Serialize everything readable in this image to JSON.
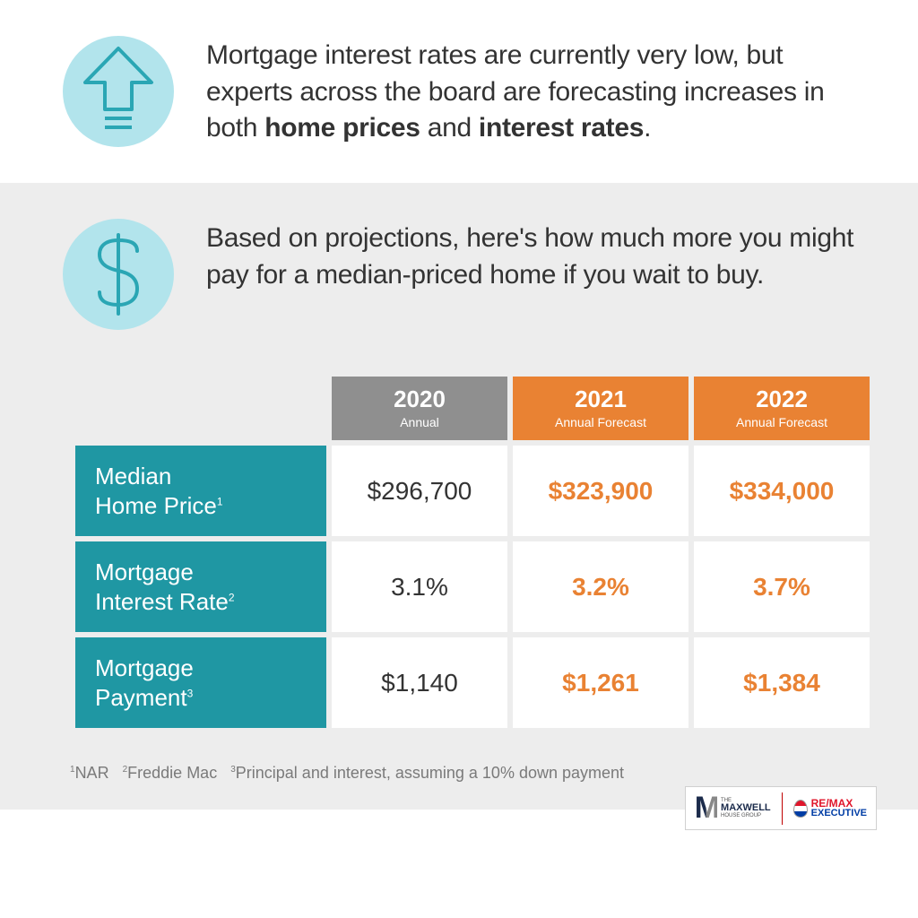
{
  "colors": {
    "bg_top": "#ffffff",
    "bg_bottom": "#ededed",
    "text_body": "#333333",
    "icon_fill": "#b2e4ec",
    "icon_stroke": "#2aa6b4",
    "header_2020_bg": "#8f8f8f",
    "header_fore_bg": "#e98233",
    "row_label_bg": "#1f97a3",
    "forecast_text": "#e98233",
    "footnote_text": "#7a7a7a"
  },
  "section1": {
    "text_pre": "Mortgage interest rates are currently very low, but experts across the board are forecasting increases in both ",
    "bold1": "home prices",
    "mid": " and ",
    "bold2": "interest rates",
    "post": "."
  },
  "section2": {
    "text": "Based on projections, here's how much more you might pay for a median-priced home if you wait to buy."
  },
  "table": {
    "type": "table",
    "columns": [
      {
        "year": "2020",
        "sub": "Annual",
        "is_forecast": false
      },
      {
        "year": "2021",
        "sub": "Annual Forecast",
        "is_forecast": true
      },
      {
        "year": "2022",
        "sub": "Annual Forecast",
        "is_forecast": true
      }
    ],
    "rows": [
      {
        "label": "Median Home Price",
        "sup": "1",
        "values": [
          "$296,700",
          "$323,900",
          "$334,000"
        ]
      },
      {
        "label": "Mortgage Interest Rate",
        "sup": "2",
        "values": [
          "3.1%",
          "3.2%",
          "3.7%"
        ]
      },
      {
        "label": "Mortgage Payment",
        "sup": "3",
        "values": [
          "$1,140",
          "$1,261",
          "$1,384"
        ]
      }
    ],
    "row_label_fontsize": 26,
    "cell_fontsize": 28,
    "header_year_fontsize": 26,
    "header_sub_fontsize": 14
  },
  "footnote": {
    "note1_sup": "1",
    "note1": "NAR",
    "note2_sup": "2",
    "note2": "Freddie Mac",
    "note3_sup": "3",
    "note3": "Principal and interest, assuming a 10% down payment"
  },
  "logos": {
    "maxwell_top": "THE",
    "maxwell_main": "MAXWELL",
    "maxwell_sub": "HOUSE GROUP",
    "remax_l1a": "RE",
    "remax_l1b": "/",
    "remax_l1c": "MAX",
    "remax_l2": "EXECUTIVE"
  }
}
